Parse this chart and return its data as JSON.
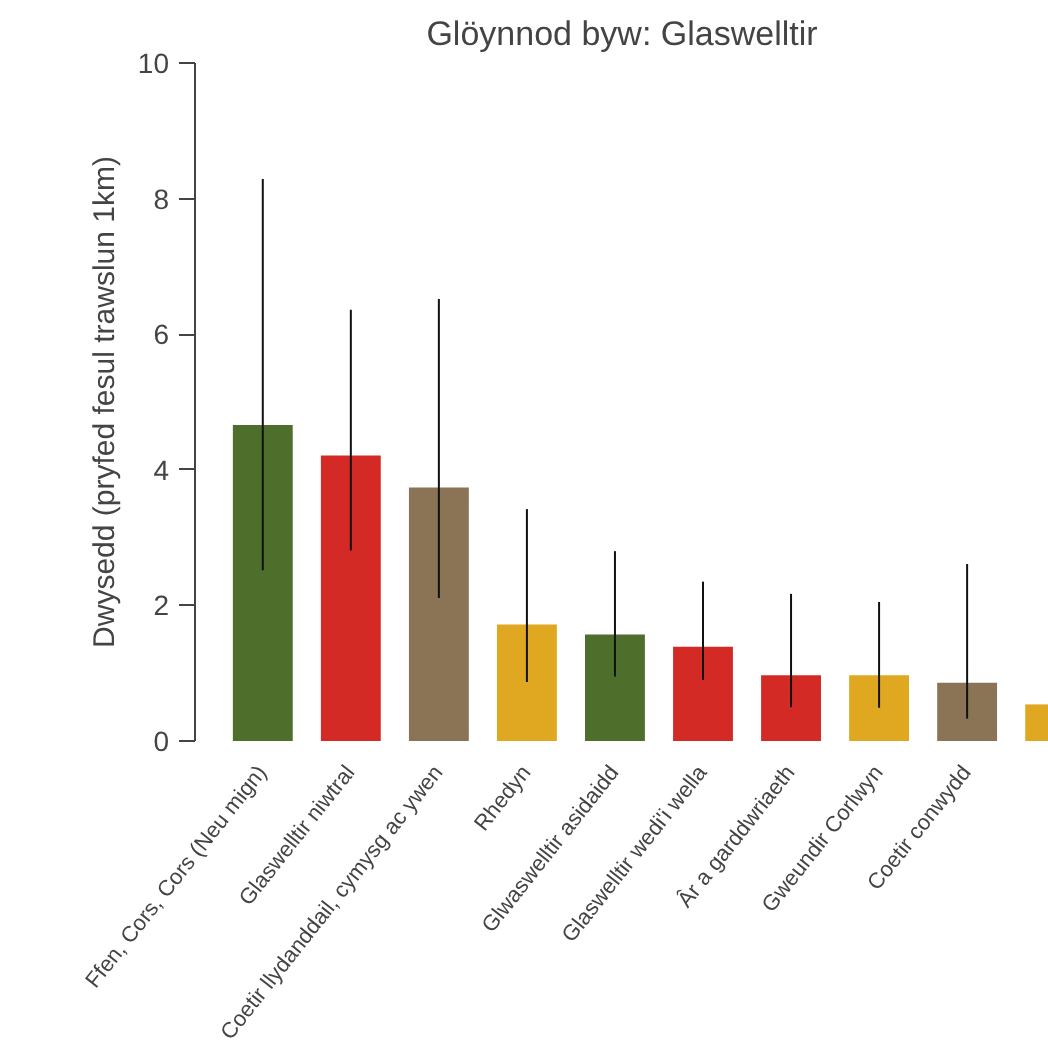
{
  "chart_data": {
    "type": "bar",
    "title": "Glöynnod byw: Glaswelltir",
    "ylabel": "Dwysedd (pryfed fesul trawslun 1km)",
    "categories": [
      "Ffen, Cors, Cors (Neu mign)",
      "Glaswelltir niwtral",
      "Coetir llydanddail, cymysg ac ywen",
      "Rhedyn",
      "Glwaswelltir asidaidd",
      "Glaswelltir wedi'i wella",
      "Âr a garddwriaeth",
      "Gweundir Corlwyn",
      "Coetir conwydd",
      null
    ],
    "values": [
      4.66,
      4.21,
      3.74,
      1.72,
      1.57,
      1.39,
      0.97,
      0.97,
      0.86,
      0.54
    ],
    "colors": [
      "#4e6e2c",
      "#d42a26",
      "#8b7355",
      "#e0a820",
      "#4e6e2c",
      "#d42a26",
      "#d42a26",
      "#e0a820",
      "#8b7355",
      "#e0a820"
    ],
    "errors": [
      [
        2.52,
        8.29
      ],
      [
        2.81,
        6.36
      ],
      [
        2.11,
        6.52
      ],
      [
        0.87,
        3.42
      ],
      [
        0.95,
        2.8
      ],
      [
        0.9,
        2.35
      ],
      [
        0.5,
        2.17
      ],
      [
        0.49,
        2.05
      ],
      [
        0.33,
        2.61
      ],
      null
    ],
    "ylim": [
      0,
      10
    ],
    "yticks": [
      0,
      2,
      4,
      6,
      8,
      10
    ],
    "grid": false
  }
}
